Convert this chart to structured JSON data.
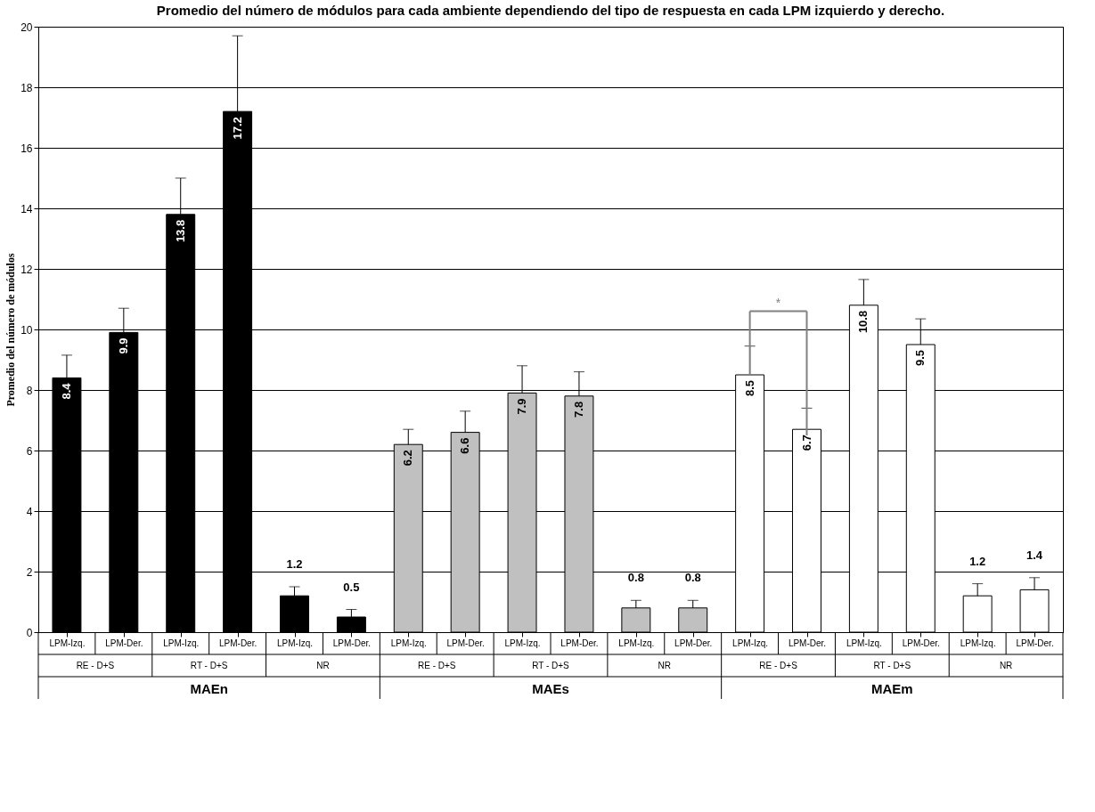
{
  "chart_data": {
    "type": "bar",
    "title": "Promedio del número de módulos para cada ambiente dependiendo del tipo de respuesta en cada LPM izquierdo y derecho.",
    "ylabel": "Promedio del número de módulos",
    "categories": [
      "LPM-Izq.",
      "LPM-Der.",
      "LPM-Izq.",
      "LPM-Der.",
      "LPM-Izq.",
      "LPM-Der.",
      "LPM-Izq.",
      "LPM-Der.",
      "LPM-Izq.",
      "LPM-Der.",
      "LPM-Izq.",
      "LPM-Der.",
      "LPM-Izq.",
      "LPM-Der.",
      "LPM-Izq.",
      "LPM-Der.",
      "LPM-Izq.",
      "LPM-Der."
    ],
    "values": [
      8.4,
      9.9,
      13.8,
      17.2,
      1.2,
      0.5,
      6.2,
      6.6,
      7.9,
      7.8,
      0.8,
      0.8,
      8.5,
      6.7,
      10.8,
      9.5,
      1.2,
      1.4
    ],
    "colors": [
      "#000000",
      "#000000",
      "#000000",
      "#000000",
      "#000000",
      "#000000",
      "#c0c0c0",
      "#c0c0c0",
      "#c0c0c0",
      "#c0c0c0",
      "#c0c0c0",
      "#c0c0c0",
      "#ffffff",
      "#ffffff",
      "#ffffff",
      "#ffffff",
      "#ffffff",
      "#ffffff"
    ],
    "errors": [
      [
        8.4,
        9.15
      ],
      [
        9.9,
        10.7
      ],
      [
        13.8,
        15.0
      ],
      [
        17.2,
        19.7
      ],
      [
        1.2,
        1.5
      ],
      [
        0.5,
        0.75
      ],
      [
        6.2,
        6.7
      ],
      [
        6.6,
        7.3
      ],
      [
        7.9,
        8.8
      ],
      [
        7.8,
        8.6
      ],
      [
        0.8,
        1.05
      ],
      [
        0.8,
        1.05
      ],
      [
        8.5,
        9.45
      ],
      [
        6.7,
        7.4
      ],
      [
        10.8,
        11.65
      ],
      [
        9.5,
        10.35
      ],
      [
        1.2,
        1.6
      ],
      [
        1.4,
        1.8
      ]
    ],
    "data_labels": true,
    "ylim": [
      0,
      20
    ],
    "yticks": [
      0,
      2,
      4,
      6,
      8,
      10,
      12,
      14,
      16,
      18,
      20
    ],
    "grid": "y",
    "annotations": [
      "RE - D+S",
      "RT - D+S",
      "NR",
      "RE - D+S",
      "RT - D+S",
      "NR",
      "RE - D+S",
      "RT - D+S",
      "NR",
      "MAEn",
      "MAEs",
      "MAEm",
      "*"
    ]
  }
}
